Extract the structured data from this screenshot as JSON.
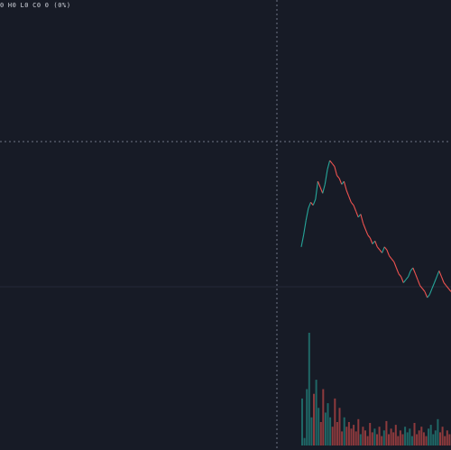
{
  "legend": {
    "open": "0",
    "high": "H0",
    "low": "L0",
    "close": "C0",
    "change": "0 (0%)"
  },
  "colors": {
    "background": "#171b26",
    "grid": "#242938",
    "crosshair": "#6f7585",
    "up": "#26a69a",
    "down": "#ef5350",
    "text": "#d1d4dc"
  },
  "chart_data": {
    "type": "line",
    "title": "",
    "xlabel": "",
    "ylabel": "",
    "grid": true,
    "series": [
      {
        "price": [
          100,
          104,
          109,
          113,
          115,
          114,
          116,
          122,
          120,
          118,
          121,
          126,
          129,
          128,
          127,
          124,
          123,
          121,
          122,
          119,
          117,
          115,
          114,
          112,
          110,
          111,
          108,
          106,
          104,
          103,
          101,
          102,
          100,
          99,
          98,
          100,
          99,
          97,
          96,
          95,
          93,
          91,
          90,
          88,
          89,
          90,
          92,
          93,
          91,
          89,
          87,
          86,
          85,
          83,
          84,
          86,
          88,
          90,
          92,
          90,
          88,
          87,
          86,
          85
        ],
        "volume": [
          50,
          8,
          60,
          120,
          30,
          55,
          70,
          40,
          25,
          60,
          35,
          45,
          30,
          20,
          50,
          25,
          40,
          15,
          30,
          20,
          25,
          18,
          22,
          15,
          28,
          12,
          20,
          16,
          10,
          24,
          14,
          18,
          12,
          20,
          10,
          16,
          26,
          12,
          18,
          14,
          22,
          10,
          16,
          12,
          20,
          14,
          18,
          10,
          24,
          12,
          16,
          20,
          14,
          10,
          18,
          22,
          12,
          16,
          28,
          14,
          20,
          10,
          16,
          12
        ]
      }
    ]
  }
}
